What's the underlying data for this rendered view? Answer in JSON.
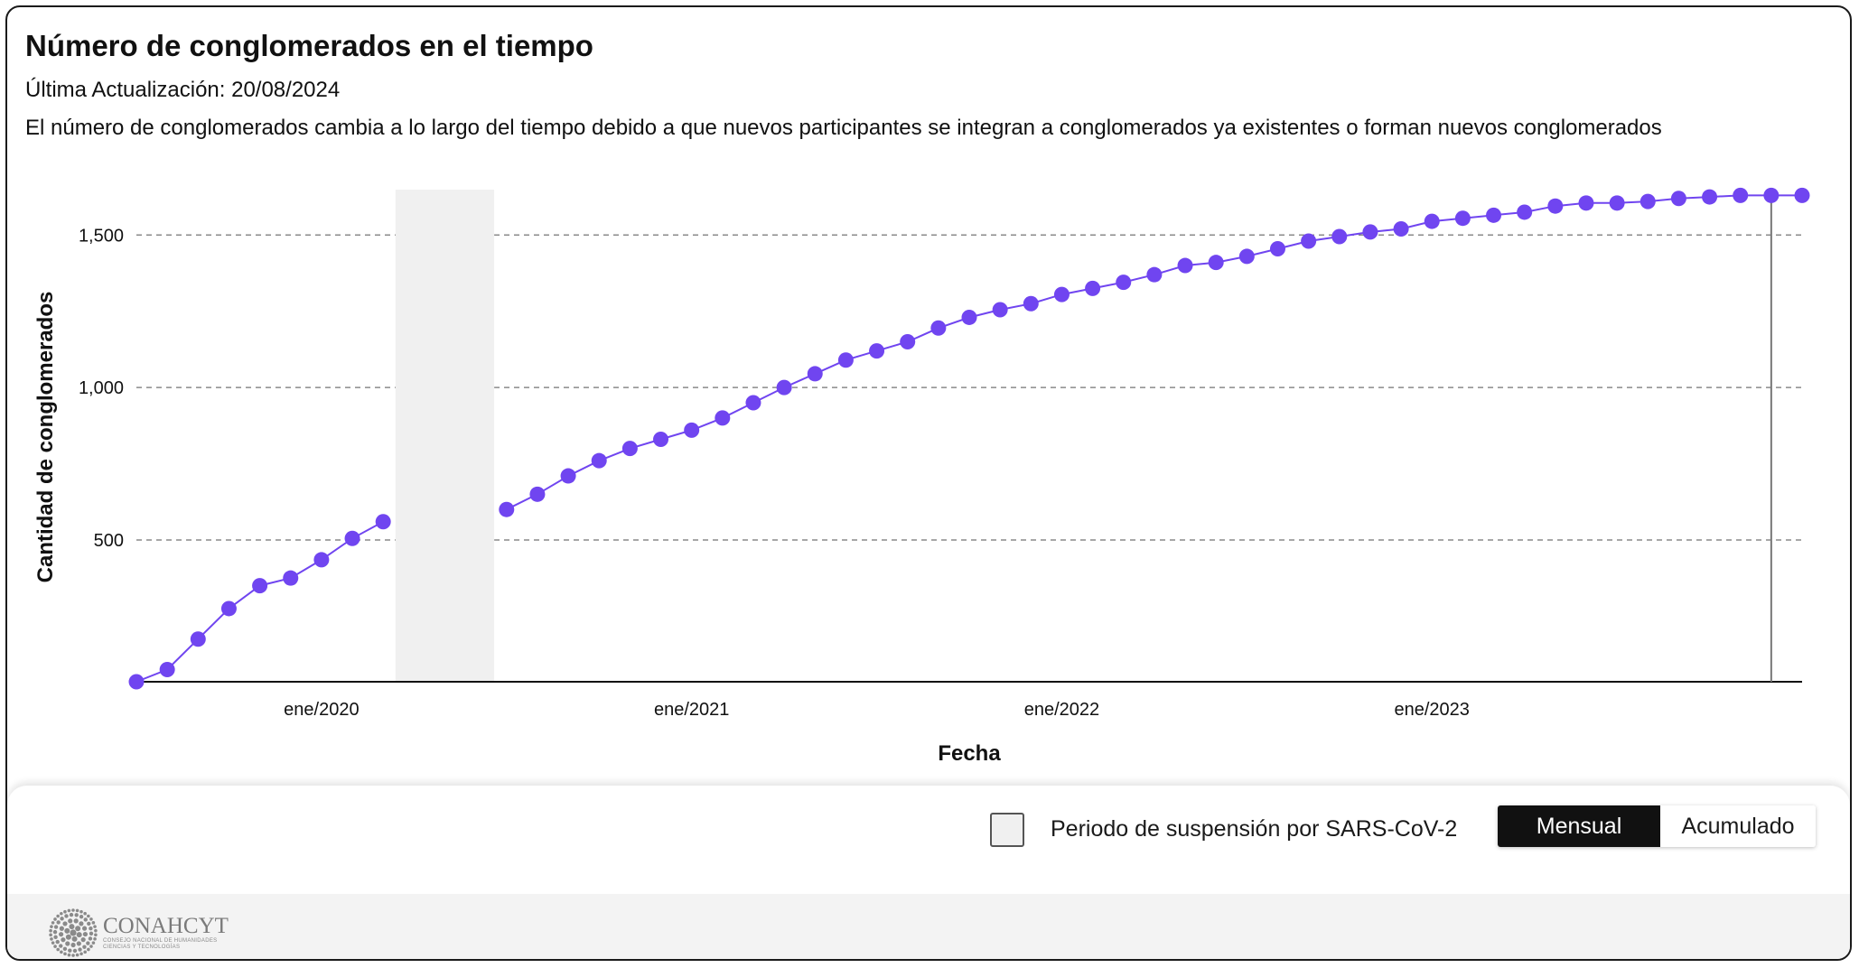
{
  "header": {
    "title": "Número de conglomerados en el tiempo",
    "updated": "Última Actualización: 20/08/2024",
    "description": "El número de conglomerados cambia a lo largo del tiempo debido a que nuevos participantes se integran a conglomerados ya existentes o forman nuevos conglomerados"
  },
  "chart_data": {
    "type": "line",
    "xlabel": "Fecha",
    "ylabel": "Cantidad de conglomerados",
    "x_ticks": [
      "ene/2020",
      "ene/2021",
      "ene/2022",
      "ene/2023"
    ],
    "y_ticks": [
      500,
      1000,
      1500
    ],
    "y_tick_labels": [
      "500",
      "1,000",
      "1,500"
    ],
    "ylim": [
      35,
      1640
    ],
    "grid": "horizontal dashed",
    "series": [
      {
        "color": "#7045f0",
        "x": [
          "2019-07",
          "2019-08",
          "2019-09",
          "2019-10",
          "2019-11",
          "2019-12",
          "2020-01",
          "2020-02",
          "2020-03",
          "2020-04",
          "2020-05",
          "2020-06",
          "2020-07",
          "2020-08",
          "2020-09",
          "2020-10",
          "2020-11",
          "2020-12",
          "2021-01",
          "2021-02",
          "2021-03",
          "2021-04",
          "2021-05",
          "2021-06",
          "2021-07",
          "2021-08",
          "2021-09",
          "2021-10",
          "2021-11",
          "2021-12",
          "2022-01",
          "2022-02",
          "2022-03",
          "2022-04",
          "2022-05",
          "2022-06",
          "2022-07",
          "2022-08",
          "2022-09",
          "2022-10",
          "2022-11",
          "2022-12",
          "2023-01",
          "2023-02",
          "2023-03",
          "2023-04",
          "2023-05",
          "2023-06",
          "2023-07",
          "2023-08",
          "2023-09",
          "2023-10",
          "2023-11",
          "2023-12",
          "2024-01"
        ],
        "y": [
          35,
          75,
          175,
          275,
          350,
          375,
          435,
          505,
          560,
          null,
          null,
          null,
          600,
          650,
          710,
          760,
          800,
          830,
          860,
          900,
          950,
          1000,
          1045,
          1090,
          1120,
          1150,
          1195,
          1230,
          1255,
          1275,
          1305,
          1325,
          1345,
          1370,
          1400,
          1410,
          1430,
          1455,
          1480,
          1495,
          1510,
          1520,
          1545,
          1555,
          1565,
          1575,
          1595,
          1605,
          1605,
          1610,
          1620,
          1625,
          1630,
          1630,
          1630
        ]
      }
    ],
    "shaded_region": {
      "from": "2020-04",
      "to": "2020-06",
      "label": "Periodo de suspensión por SARS-CoV-2",
      "color": "#f0f0f0"
    }
  },
  "legend": {
    "label": "Periodo de suspensión por SARS-CoV-2"
  },
  "toggle": {
    "active": "Mensual",
    "inactive": "Acumulado"
  },
  "logo": {
    "name": "CONAHCYT",
    "subtitle_1": "CONSEJO NACIONAL DE HUMANIDADES",
    "subtitle_2": "CIENCIAS Y TECNOLOGÍAS"
  }
}
